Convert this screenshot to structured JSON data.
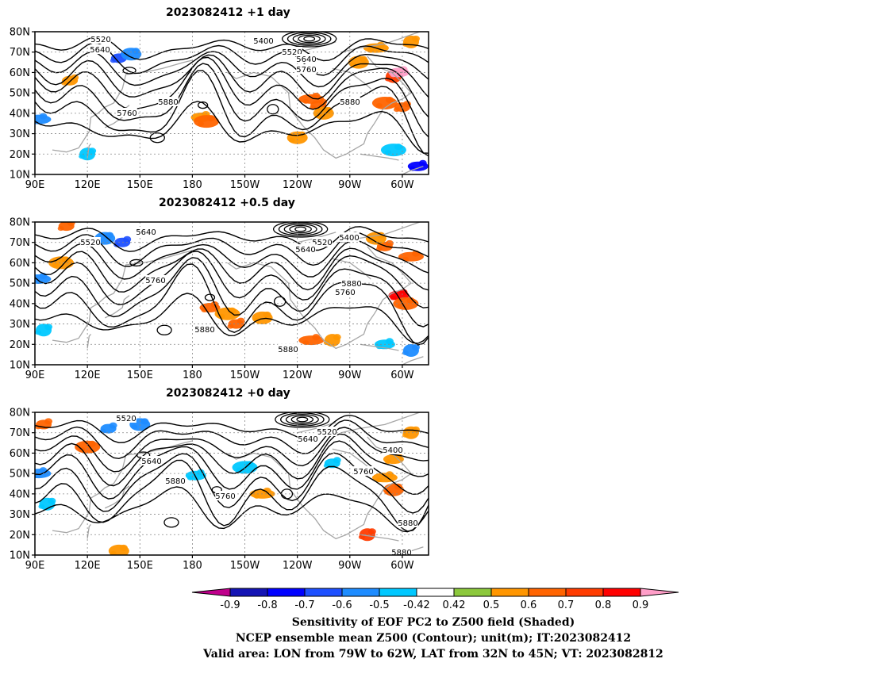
{
  "panels": [
    {
      "title": "2023082412  +1 day",
      "contour_labels": [
        "5520",
        "5640",
        "5400",
        "5520",
        "5640",
        "5760",
        "5880",
        "5760",
        "5880"
      ],
      "shading_blobs": [
        {
          "lon": 138,
          "lat": 67,
          "v": -0.7
        },
        {
          "lon": 145,
          "lat": 69,
          "v": -0.6
        },
        {
          "lon": 92,
          "lat": 37,
          "v": -0.6
        },
        {
          "lon": 120,
          "lat": 20,
          "v": -0.5
        },
        {
          "lon": 185,
          "lat": 38,
          "v": 0.5
        },
        {
          "lon": 188,
          "lat": 36,
          "v": 0.6
        },
        {
          "lon": -108,
          "lat": 44,
          "v": 0.6
        },
        {
          "lon": -105,
          "lat": 40,
          "v": 0.5
        },
        {
          "lon": -112,
          "lat": 47,
          "v": 0.6
        },
        {
          "lon": -65,
          "lat": 58,
          "v": 0.7
        },
        {
          "lon": -62,
          "lat": 60,
          "v": 0.9
        },
        {
          "lon": -70,
          "lat": 45,
          "v": 0.6
        },
        {
          "lon": -60,
          "lat": 43,
          "v": 0.6
        },
        {
          "lon": -85,
          "lat": 65,
          "v": 0.5
        },
        {
          "lon": -75,
          "lat": 72,
          "v": 0.5
        },
        {
          "lon": -55,
          "lat": 75,
          "v": 0.5
        },
        {
          "lon": -51,
          "lat": 14,
          "v": -0.8
        },
        {
          "lon": -65,
          "lat": 22,
          "v": -0.5
        },
        {
          "lon": 110,
          "lat": 56,
          "v": 0.5
        },
        {
          "lon": -120,
          "lat": 28,
          "v": 0.5
        }
      ]
    },
    {
      "title": "2023082412  +0.5 day",
      "contour_labels": [
        "5640",
        "5520",
        "5400",
        "5520",
        "5640",
        "5760",
        "5880",
        "5760",
        "5880",
        "5880"
      ],
      "shading_blobs": [
        {
          "lon": 140,
          "lat": 70,
          "v": -0.7
        },
        {
          "lon": 130,
          "lat": 72,
          "v": -0.6
        },
        {
          "lon": 92,
          "lat": 52,
          "v": -0.6
        },
        {
          "lon": 95,
          "lat": 27,
          "v": -0.5
        },
        {
          "lon": 190,
          "lat": 38,
          "v": 0.6
        },
        {
          "lon": 200,
          "lat": 35,
          "v": 0.5
        },
        {
          "lon": -155,
          "lat": 30,
          "v": 0.6
        },
        {
          "lon": -140,
          "lat": 33,
          "v": 0.5
        },
        {
          "lon": -112,
          "lat": 22,
          "v": 0.6
        },
        {
          "lon": -100,
          "lat": 22,
          "v": 0.5
        },
        {
          "lon": -62,
          "lat": 44,
          "v": 0.8
        },
        {
          "lon": -58,
          "lat": 40,
          "v": 0.6
        },
        {
          "lon": -70,
          "lat": 68,
          "v": 0.6
        },
        {
          "lon": -75,
          "lat": 72,
          "v": 0.5
        },
        {
          "lon": -55,
          "lat": 63,
          "v": 0.6
        },
        {
          "lon": -55,
          "lat": 17,
          "v": -0.6
        },
        {
          "lon": -70,
          "lat": 20,
          "v": -0.5
        },
        {
          "lon": 105,
          "lat": 60,
          "v": 0.5
        },
        {
          "lon": 108,
          "lat": 78,
          "v": 0.6
        }
      ]
    },
    {
      "title": "2023082412  +0 day",
      "contour_labels": [
        "5520",
        "5520",
        "5640",
        "5640",
        "5400",
        "5880",
        "5760",
        "5760",
        "5880",
        "5880"
      ],
      "shading_blobs": [
        {
          "lon": 132,
          "lat": 72,
          "v": -0.6
        },
        {
          "lon": 150,
          "lat": 74,
          "v": -0.6
        },
        {
          "lon": 92,
          "lat": 50,
          "v": -0.6
        },
        {
          "lon": 97,
          "lat": 35,
          "v": -0.5
        },
        {
          "lon": 182,
          "lat": 49,
          "v": -0.5
        },
        {
          "lon": -150,
          "lat": 53,
          "v": -0.5
        },
        {
          "lon": -100,
          "lat": 55,
          "v": -0.5
        },
        {
          "lon": -65,
          "lat": 42,
          "v": 0.6
        },
        {
          "lon": -70,
          "lat": 48,
          "v": 0.5
        },
        {
          "lon": -80,
          "lat": 20,
          "v": 0.7
        },
        {
          "lon": -65,
          "lat": 57,
          "v": 0.5
        },
        {
          "lon": 120,
          "lat": 63,
          "v": 0.6
        },
        {
          "lon": 95,
          "lat": 74,
          "v": 0.6
        },
        {
          "lon": 138,
          "lat": 12,
          "v": 0.5
        },
        {
          "lon": -140,
          "lat": 40,
          "v": 0.5
        },
        {
          "lon": -55,
          "lat": 70,
          "v": 0.5
        }
      ]
    }
  ],
  "axes": {
    "lat_ticks": [
      {
        "val": 10,
        "label": "10N"
      },
      {
        "val": 20,
        "label": "20N"
      },
      {
        "val": 30,
        "label": "30N"
      },
      {
        "val": 40,
        "label": "40N"
      },
      {
        "val": 50,
        "label": "50N"
      },
      {
        "val": 60,
        "label": "60N"
      },
      {
        "val": 70,
        "label": "70N"
      },
      {
        "val": 80,
        "label": "80N"
      }
    ],
    "lon_ticks": [
      {
        "val": 90,
        "label": "90E"
      },
      {
        "val": 120,
        "label": "120E"
      },
      {
        "val": 150,
        "label": "150E"
      },
      {
        "val": 180,
        "label": "180"
      },
      {
        "val": 210,
        "label": "150W"
      },
      {
        "val": 240,
        "label": "120W"
      },
      {
        "val": 270,
        "label": "90W"
      },
      {
        "val": 300,
        "label": "60W"
      }
    ],
    "lon_range": [
      90,
      315
    ],
    "lat_range": [
      10,
      80
    ]
  },
  "colorbar": {
    "colors": [
      "#c0008c",
      "#1414b4",
      "#0000ff",
      "#1e50ff",
      "#1e8cff",
      "#00c8ff",
      "#ffffff",
      "#8cc83c",
      "#ff9600",
      "#ff6400",
      "#ff3c00",
      "#ff0000",
      "#ff9ec8"
    ],
    "tick_labels": [
      "-0.9",
      "-0.8",
      "-0.7",
      "-0.6",
      "-0.5",
      "-0.42",
      "0.42",
      "0.5",
      "0.6",
      "0.7",
      "0.8",
      "0.9"
    ]
  },
  "caption": {
    "line1": "Sensitivity of EOF PC2 to Z500 field (Shaded)",
    "line2": "NCEP ensemble mean Z500 (Contour); unit(m); IT:2023082412",
    "line3": "Valid area: LON from 79W to 62W, LAT from 32N to 45N; VT: 2023082812"
  }
}
